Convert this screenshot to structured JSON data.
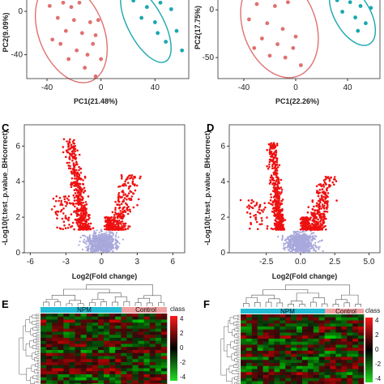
{
  "panels": {
    "A": {
      "letter": "",
      "chart_data": {
        "type": "scatter",
        "xlabel": "PC1(21.48%)",
        "ylabel": "PC2(9.09%)",
        "xlim": [
          -55,
          65
        ],
        "ylim": [
          -62,
          12
        ],
        "xticks": [
          -40,
          0,
          40
        ],
        "yticks": [
          0,
          -40
        ],
        "series": [
          {
            "color": "#e07070",
            "points": [
              [
                -38,
                5
              ],
              [
                -28,
                8
              ],
              [
                -22,
                4
              ],
              [
                -16,
                8
              ],
              [
                -32,
                -6
              ],
              [
                -20,
                -8
              ],
              [
                -8,
                -10
              ],
              [
                -26,
                -18
              ],
              [
                -14,
                -20
              ],
              [
                -4,
                -22
              ],
              [
                -30,
                -30
              ],
              [
                -18,
                -36
              ],
              [
                -10,
                -40
              ],
              [
                0,
                -44
              ],
              [
                -6,
                -30
              ],
              [
                -24,
                -44
              ],
              [
                -12,
                -52
              ],
              [
                -4,
                -60
              ],
              [
                -36,
                -26
              ],
              [
                -2,
                -8
              ]
            ]
          },
          {
            "color": "#1ba7b0",
            "points": [
              [
                24,
                10
              ],
              [
                34,
                4
              ],
              [
                44,
                8
              ],
              [
                52,
                2
              ],
              [
                30,
                -6
              ],
              [
                40,
                -10
              ],
              [
                56,
                -18
              ],
              [
                48,
                -28
              ],
              [
                60,
                -36
              ],
              [
                42,
                -20
              ]
            ]
          }
        ]
      }
    },
    "B": {
      "letter": "",
      "chart_data": {
        "type": "scatter",
        "xlabel": "PC1(22.26%)",
        "ylabel": "PC2(17.75%)",
        "xlim": [
          -60,
          65
        ],
        "ylim": [
          -72,
          12
        ],
        "xticks": [
          -40,
          0,
          40
        ],
        "yticks": [
          0,
          -50
        ],
        "series": [
          {
            "color": "#e07070",
            "points": [
              [
                -30,
                6
              ],
              [
                -16,
                4
              ],
              [
                -6,
                8
              ],
              [
                -36,
                -10
              ],
              [
                -22,
                -14
              ],
              [
                -10,
                -20
              ],
              [
                -26,
                -30
              ],
              [
                -14,
                -36
              ],
              [
                -2,
                -40
              ],
              [
                -20,
                -48
              ],
              [
                -8,
                -50
              ],
              [
                4,
                -58
              ],
              [
                -32,
                -40
              ],
              [
                0,
                -28
              ]
            ]
          },
          {
            "color": "#1ba7b0",
            "points": [
              [
                32,
                10
              ],
              [
                42,
                8
              ],
              [
                50,
                4
              ],
              [
                58,
                2
              ],
              [
                36,
                -2
              ],
              [
                46,
                -8
              ],
              [
                54,
                -14
              ],
              [
                48,
                -22
              ]
            ]
          }
        ]
      }
    },
    "C": {
      "letter": "C",
      "chart_data": {
        "type": "scatter",
        "xlabel": "Log2(Fold change)",
        "ylabel": "-Log10(t.test_p.value_BHcorrect)",
        "xlim": [
          -6.5,
          7
        ],
        "ylim": [
          0,
          7.2
        ],
        "xticks": [
          -6,
          -3,
          0,
          3,
          6
        ],
        "yticks": [
          0,
          2,
          4,
          6
        ],
        "threshold": 1.3
      }
    },
    "D": {
      "letter": "D",
      "chart_data": {
        "type": "scatter",
        "xlabel": "Log2(Fold change)",
        "ylabel": "-Log10(t.test_p.value_BHcorrect)",
        "xlim": [
          -5.2,
          5.8
        ],
        "ylim": [
          0,
          7.2
        ],
        "xticks": [
          -2.5,
          0.0,
          2.5,
          5.0
        ],
        "xtick_labels": [
          "-2.5",
          "0.0",
          "2.5",
          "5.0"
        ],
        "yticks": [
          0,
          2,
          4,
          6
        ],
        "threshold": 1.3
      }
    },
    "E": {
      "letter": "E",
      "chart_data": {
        "type": "heatmap",
        "group_labels": [
          "NPM",
          "Control"
        ],
        "legend_title": "class",
        "scale_labels": [
          "4",
          "2",
          "0",
          "-2",
          "-4"
        ]
      }
    },
    "F": {
      "letter": "F",
      "chart_data": {
        "type": "heatmap",
        "group_labels": [
          "NPM",
          "Control"
        ],
        "legend_title": "class",
        "scale_labels": [
          "4",
          "2",
          "0",
          "-2",
          "-4"
        ]
      }
    }
  }
}
